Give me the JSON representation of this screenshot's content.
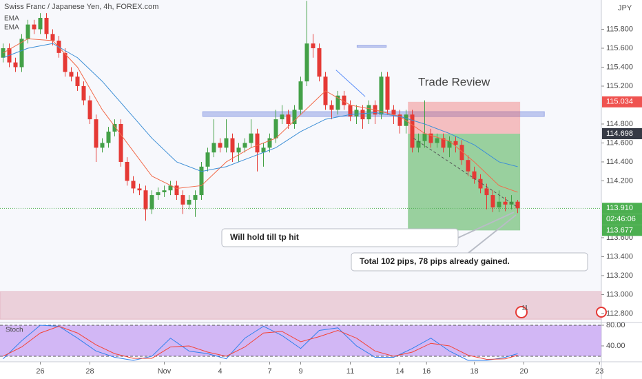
{
  "chart_data": {
    "type": "candlestick",
    "title": "Swiss Franc / Japanese Yen, 4h, FOREX.com",
    "currency": "JPY",
    "up_color": "#43a047",
    "down_color": "#e53935",
    "open": [
      115.5,
      115.6,
      115.45,
      115.4,
      115.7,
      115.85,
      115.8,
      115.92,
      115.75,
      115.68,
      115.55,
      115.35,
      115.3,
      115.2,
      115.05,
      114.85,
      114.55,
      114.6,
      114.72,
      114.8,
      114.4,
      114.2,
      114.12,
      114.1,
      113.9,
      114.05,
      114.08,
      114.1,
      114.15,
      114.05,
      113.95,
      114.0,
      114.05,
      114.35,
      114.5,
      114.6,
      114.55,
      114.65,
      114.5,
      114.55,
      114.6,
      114.7,
      114.5,
      114.55,
      114.65,
      114.85,
      114.9,
      114.8,
      114.95,
      115.25,
      115.65,
      115.6,
      115.3,
      115.0,
      114.95,
      115.1,
      115.0,
      114.88,
      114.95,
      114.85,
      115.0,
      114.9,
      115.3,
      114.95,
      114.9,
      114.78,
      114.9,
      114.55,
      114.62,
      114.7,
      114.6,
      114.65,
      114.55,
      114.62,
      114.58,
      114.42,
      114.3,
      114.22,
      114.12,
      114.05,
      113.92,
      113.98,
      113.95,
      113.98
    ],
    "high": [
      115.65,
      115.65,
      115.5,
      115.75,
      115.9,
      115.9,
      115.97,
      115.97,
      115.8,
      115.73,
      115.6,
      115.4,
      115.35,
      115.25,
      115.1,
      114.9,
      114.65,
      114.77,
      114.85,
      114.85,
      114.45,
      114.25,
      114.17,
      114.15,
      114.1,
      114.13,
      114.15,
      114.2,
      114.2,
      114.1,
      114.05,
      114.1,
      114.4,
      114.55,
      114.85,
      114.65,
      114.85,
      114.7,
      114.6,
      114.65,
      114.85,
      114.75,
      114.6,
      114.7,
      114.95,
      115.0,
      114.95,
      115.0,
      115.3,
      116.1,
      115.75,
      115.65,
      115.35,
      115.05,
      115.15,
      115.15,
      115.05,
      115.0,
      115.0,
      115.05,
      115.05,
      115.35,
      115.35,
      115.0,
      114.95,
      114.95,
      114.95,
      114.7,
      115.05,
      114.75,
      114.7,
      114.7,
      114.67,
      114.67,
      114.63,
      114.47,
      114.35,
      114.27,
      114.17,
      114.1,
      114.1,
      114.03,
      114.05,
      114.0
    ],
    "low": [
      115.45,
      115.4,
      115.35,
      115.35,
      115.65,
      115.75,
      115.75,
      115.7,
      115.63,
      115.5,
      115.3,
      115.25,
      115.15,
      115.0,
      114.8,
      114.4,
      114.5,
      114.55,
      114.67,
      114.35,
      114.15,
      114.07,
      114.05,
      113.78,
      113.85,
      114.0,
      114.03,
      114.05,
      114.0,
      113.85,
      113.9,
      113.82,
      114.0,
      114.3,
      114.45,
      114.5,
      114.5,
      114.4,
      114.4,
      114.5,
      114.55,
      114.3,
      114.35,
      114.5,
      114.6,
      114.8,
      114.75,
      114.75,
      114.9,
      115.2,
      115.5,
      115.25,
      114.95,
      114.85,
      114.9,
      114.95,
      114.83,
      114.8,
      114.75,
      114.8,
      114.8,
      114.85,
      114.9,
      114.8,
      114.7,
      114.7,
      114.5,
      114.5,
      114.55,
      114.55,
      114.55,
      114.5,
      114.45,
      114.5,
      114.37,
      114.25,
      114.17,
      114.07,
      113.9,
      113.87,
      113.87,
      113.88,
      113.9,
      113.86
    ],
    "close": [
      115.6,
      115.45,
      115.4,
      115.7,
      115.85,
      115.8,
      115.92,
      115.75,
      115.68,
      115.55,
      115.35,
      115.3,
      115.2,
      115.05,
      114.85,
      114.55,
      114.6,
      114.72,
      114.8,
      114.4,
      114.2,
      114.12,
      114.1,
      113.9,
      114.05,
      114.08,
      114.1,
      114.15,
      114.05,
      113.95,
      114.0,
      114.05,
      114.35,
      114.5,
      114.6,
      114.55,
      114.65,
      114.5,
      114.55,
      114.6,
      114.7,
      114.5,
      114.55,
      114.65,
      114.85,
      114.9,
      114.8,
      114.95,
      115.25,
      115.65,
      115.6,
      115.3,
      115.0,
      114.95,
      115.1,
      115.0,
      114.88,
      114.95,
      114.85,
      115.0,
      114.9,
      115.3,
      114.95,
      114.9,
      114.78,
      114.9,
      114.55,
      114.62,
      114.7,
      114.6,
      114.65,
      114.55,
      114.62,
      114.58,
      114.42,
      114.3,
      114.22,
      114.12,
      114.05,
      113.92,
      113.98,
      113.95,
      113.98,
      113.91
    ],
    "xlim": [
      -0.5,
      96.5
    ],
    "xticks": [
      {
        "value": 6,
        "label": "26"
      },
      {
        "value": 14,
        "label": "28"
      },
      {
        "value": 26,
        "label": "Nov"
      },
      {
        "value": 35,
        "label": "4"
      },
      {
        "value": 43,
        "label": "7"
      },
      {
        "value": 48,
        "label": "9"
      },
      {
        "value": 56,
        "label": "11"
      },
      {
        "value": 64,
        "label": "14"
      },
      {
        "value": 68.3,
        "label": "16"
      },
      {
        "value": 76,
        "label": "18"
      },
      {
        "value": 84,
        "label": "20"
      },
      {
        "value": 96.2,
        "label": "23"
      }
    ],
    "ylim": [
      112.705,
      116.109
    ],
    "yticks": [
      {
        "value": 115.8,
        "label": "115.800"
      },
      {
        "value": 115.6,
        "label": "115.600"
      },
      {
        "value": 115.4,
        "label": "115.400"
      },
      {
        "value": 115.2,
        "label": "115.200"
      },
      {
        "value": 114.8,
        "label": "114.800"
      },
      {
        "value": 114.6,
        "label": "114.600"
      },
      {
        "value": 114.4,
        "label": "114.400"
      },
      {
        "value": 114.2,
        "label": "114.200"
      },
      {
        "value": 113.6,
        "label": "113.600"
      },
      {
        "value": 113.4,
        "label": "113.400"
      },
      {
        "value": 113.2,
        "label": "113.200"
      },
      {
        "value": 113.0,
        "label": "113.000"
      },
      {
        "value": 112.8,
        "label": "112.800"
      }
    ],
    "ema": [
      {
        "name": "EMA",
        "color": "#f26b4b",
        "x": [
          0,
          4,
          8,
          12,
          16,
          20,
          24,
          28,
          32,
          36,
          40,
          44,
          48,
          52,
          56,
          60,
          64,
          68,
          72,
          76,
          80,
          83
        ],
        "values": [
          115.55,
          115.7,
          115.68,
          115.4,
          114.95,
          114.6,
          114.25,
          114.12,
          114.15,
          114.4,
          114.55,
          114.65,
          114.9,
          115.15,
          115.0,
          114.95,
          114.88,
          114.7,
          114.62,
          114.4,
          114.15,
          114.08
        ]
      },
      {
        "name": "EMA",
        "color": "#3d8fd6",
        "x": [
          0,
          4,
          8,
          12,
          16,
          20,
          24,
          28,
          32,
          36,
          40,
          44,
          48,
          52,
          56,
          60,
          64,
          68,
          72,
          76,
          80,
          83
        ],
        "values": [
          115.5,
          115.6,
          115.65,
          115.5,
          115.25,
          114.95,
          114.65,
          114.4,
          114.3,
          114.35,
          114.45,
          114.55,
          114.72,
          114.85,
          114.9,
          114.92,
          114.88,
          114.8,
          114.7,
          114.58,
          114.4,
          114.35
        ]
      }
    ],
    "position": {
      "stop": 115.034,
      "entry": 114.698,
      "target": 113.677,
      "x": [
        65.3,
        83.4
      ],
      "stop_color": "#ef5350",
      "entry_color": "#363a45",
      "target_color": "#4caf50"
    },
    "last": {
      "value": 113.91,
      "label": "113.910",
      "countdown": "02:46:06",
      "color": "#4caf50"
    },
    "zones": [
      {
        "x": [
          32.2,
          87.3
        ],
        "y": [
          114.88,
          114.93
        ],
        "color": "#9aa8e6"
      },
      {
        "x": [
          57.1,
          61.8
        ],
        "y": [
          115.61,
          115.63
        ],
        "color": "#9aa8e6"
      },
      {
        "x": [
          -0.5,
          96.5
        ],
        "y": [
          112.74,
          113.03
        ],
        "color": "#e3b5c3"
      }
    ],
    "trend_lines": [
      {
        "x": [
          53.7,
          58.4
        ],
        "y": [
          115.37,
          115.09
        ],
        "color": "#5b8ff9",
        "dash": false
      },
      {
        "x": [
          66.2,
          82.8
        ],
        "y": [
          114.65,
          113.93
        ],
        "color": "#555555",
        "dash": true
      }
    ],
    "annotations": [
      "Trade Review",
      "Will hold till tp hit",
      "Total 102 pips, 78 pips already gained."
    ],
    "event_badge": "11",
    "stoch": {
      "name": "Stoch",
      "ylim": [
        9.3,
        85.3
      ],
      "yticks": [
        {
          "value": 80,
          "label": "80.00"
        },
        {
          "value": 40,
          "label": "40.00"
        }
      ],
      "bands": [
        20,
        80
      ],
      "band_color": "#c8a6f2",
      "x": [
        0,
        3,
        6,
        9,
        12,
        15,
        18,
        21,
        24,
        27,
        30,
        33,
        36,
        39,
        42,
        45,
        48,
        51,
        54,
        57,
        60,
        63,
        66,
        69,
        72,
        75,
        78,
        81,
        83
      ],
      "series": [
        {
          "color": "#2f80ed",
          "values": [
            15,
            50,
            80,
            78,
            55,
            30,
            18,
            12,
            20,
            55,
            30,
            25,
            15,
            55,
            78,
            60,
            35,
            70,
            75,
            40,
            18,
            18,
            35,
            55,
            30,
            12,
            12,
            18,
            25
          ]
        },
        {
          "color": "#f44336",
          "values": [
            20,
            38,
            65,
            78,
            65,
            42,
            25,
            16,
            16,
            38,
            40,
            28,
            20,
            38,
            65,
            68,
            48,
            58,
            70,
            55,
            30,
            20,
            28,
            45,
            40,
            22,
            14,
            15,
            22
          ]
        }
      ]
    }
  }
}
